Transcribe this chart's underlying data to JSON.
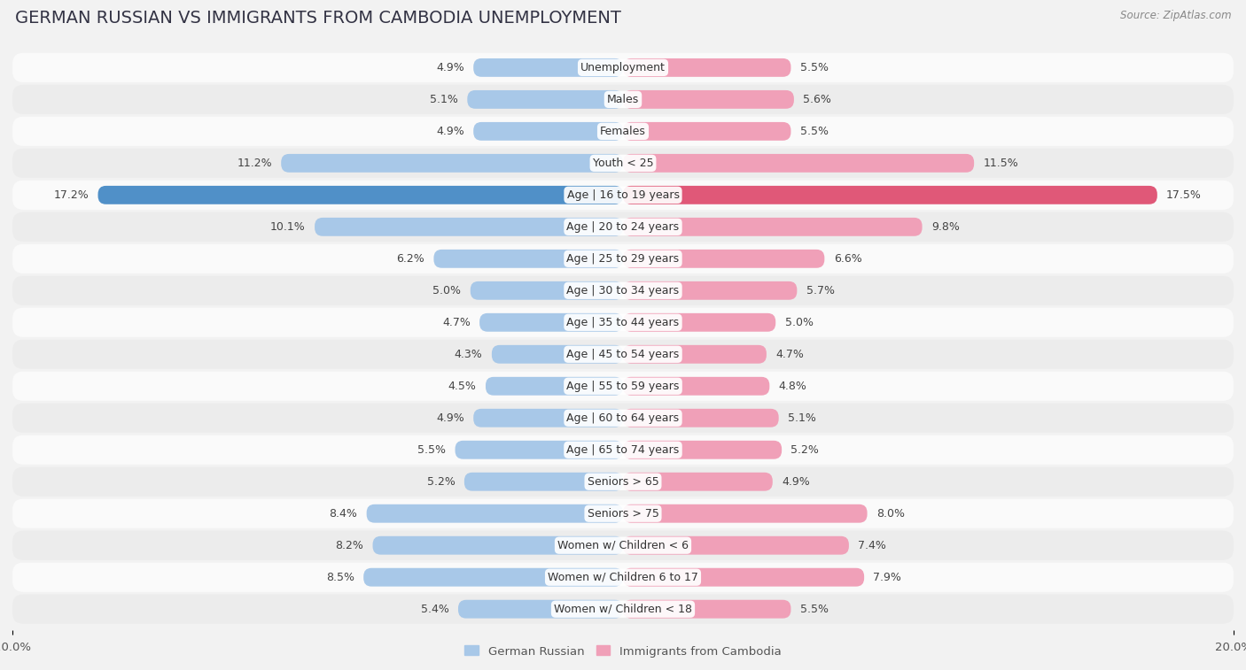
{
  "title": "GERMAN RUSSIAN VS IMMIGRANTS FROM CAMBODIA UNEMPLOYMENT",
  "source": "Source: ZipAtlas.com",
  "categories": [
    "Unemployment",
    "Males",
    "Females",
    "Youth < 25",
    "Age | 16 to 19 years",
    "Age | 20 to 24 years",
    "Age | 25 to 29 years",
    "Age | 30 to 34 years",
    "Age | 35 to 44 years",
    "Age | 45 to 54 years",
    "Age | 55 to 59 years",
    "Age | 60 to 64 years",
    "Age | 65 to 74 years",
    "Seniors > 65",
    "Seniors > 75",
    "Women w/ Children < 6",
    "Women w/ Children 6 to 17",
    "Women w/ Children < 18"
  ],
  "german_russian": [
    4.9,
    5.1,
    4.9,
    11.2,
    17.2,
    10.1,
    6.2,
    5.0,
    4.7,
    4.3,
    4.5,
    4.9,
    5.5,
    5.2,
    8.4,
    8.2,
    8.5,
    5.4
  ],
  "cambodia": [
    5.5,
    5.6,
    5.5,
    11.5,
    17.5,
    9.8,
    6.6,
    5.7,
    5.0,
    4.7,
    4.8,
    5.1,
    5.2,
    4.9,
    8.0,
    7.4,
    7.9,
    5.5
  ],
  "color_german": "#a8c8e8",
  "color_cambodia": "#f0a0b8",
  "color_german_highlight": "#5090c8",
  "color_cambodia_highlight": "#e05878",
  "highlight_row": 4,
  "background_color": "#f2f2f2",
  "row_bg_even": "#fafafa",
  "row_bg_odd": "#ececec",
  "axis_limit": 20.0,
  "legend_label_german": "German Russian",
  "legend_label_cambodia": "Immigrants from Cambodia",
  "title_fontsize": 14,
  "label_fontsize": 9,
  "value_fontsize": 9
}
